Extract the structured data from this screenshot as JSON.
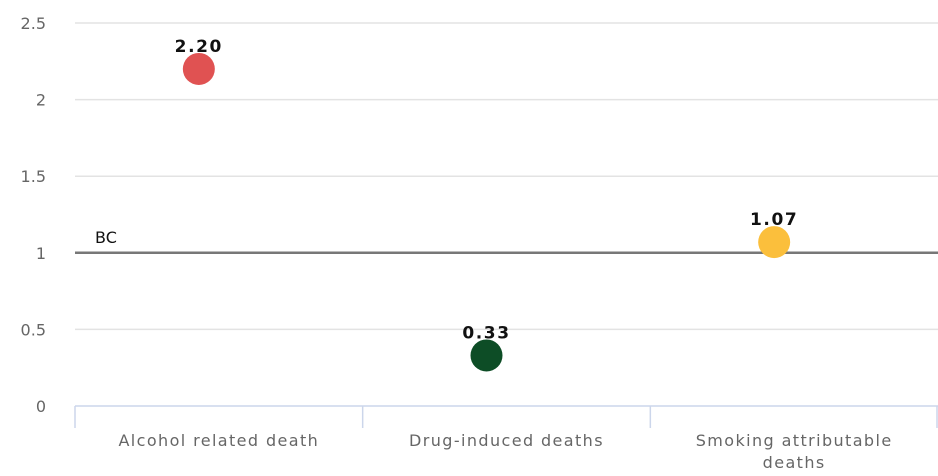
{
  "chart_data": {
    "type": "scatter",
    "categories": [
      "Alcohol related death",
      "Drug-induced deaths",
      "Smoking attributable deaths"
    ],
    "values": [
      2.2,
      0.33,
      1.07
    ],
    "data_labels": [
      "2.20",
      "0.33",
      "1.07"
    ],
    "colors": [
      "#e05252",
      "#0d4d26",
      "#fbbf3c"
    ],
    "ylim": [
      0,
      2.5
    ],
    "yticks": [
      "0",
      "0.5",
      "1",
      "1.5",
      "2",
      "2.5"
    ],
    "reference_line": {
      "label": "BC",
      "value": 1
    },
    "grid": true
  }
}
